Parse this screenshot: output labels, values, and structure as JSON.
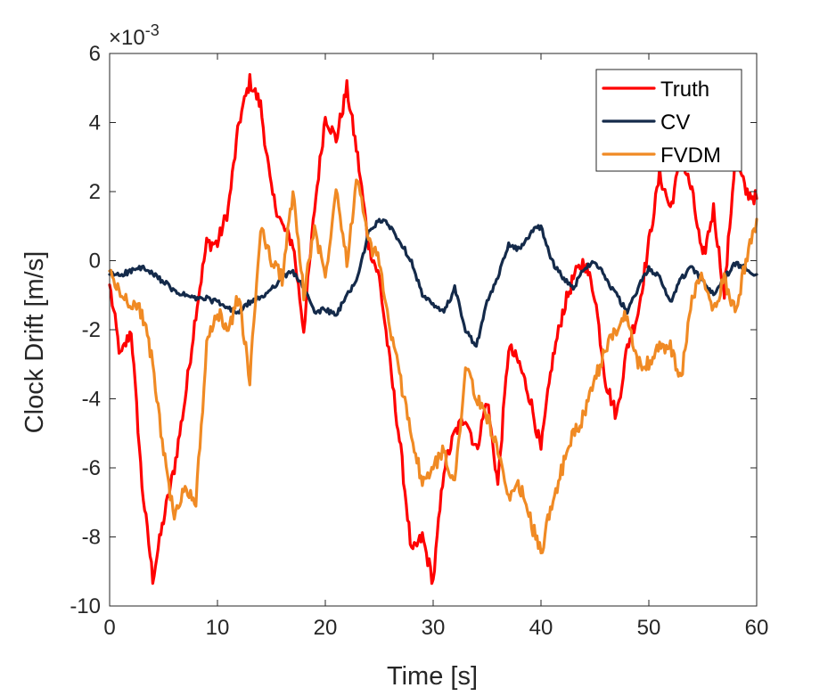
{
  "chart_data": {
    "type": "line",
    "xlabel": "Time [s]",
    "ylabel": "Clock Drift [m/s]",
    "y_exponent": {
      "base": "×10",
      "power": "-3"
    },
    "xlim": [
      0,
      60
    ],
    "ylim": [
      -10,
      6
    ],
    "xticks": [
      0,
      10,
      20,
      30,
      40,
      50,
      60
    ],
    "xtick_labels": [
      "0",
      "10",
      "20",
      "30",
      "40",
      "50",
      "60"
    ],
    "yticks": [
      -10,
      -8,
      -6,
      -4,
      -2,
      0,
      2,
      4,
      6
    ],
    "ytick_labels": [
      "-10",
      "-8",
      "-6",
      "-4",
      "-2",
      "0",
      "2",
      "4",
      "6"
    ],
    "grid": false,
    "legend_position": "top-right",
    "series": [
      {
        "name": "Truth",
        "color": "#ff0000",
        "x": [
          0,
          1,
          2,
          3,
          4,
          5,
          6,
          7,
          8,
          9,
          10,
          11,
          12,
          13,
          14,
          15,
          16,
          17,
          18,
          19,
          20,
          21,
          22,
          23,
          24,
          25,
          26,
          27,
          28,
          29,
          30,
          31,
          32,
          33,
          34,
          35,
          36,
          37,
          38,
          39,
          40,
          41,
          42,
          43,
          44,
          45,
          46,
          47,
          48,
          49,
          50,
          51,
          52,
          53,
          54,
          55,
          56,
          57,
          58,
          59,
          60
        ],
        "y": [
          -0.7,
          -2.8,
          -2.0,
          -6.5,
          -9.2,
          -7.5,
          -6.0,
          -4.0,
          -1.5,
          0.5,
          0.5,
          1.5,
          4.0,
          5.2,
          4.5,
          2.0,
          1.0,
          0.5,
          -2.0,
          1.5,
          4.2,
          3.5,
          5.0,
          3.0,
          0.5,
          -0.5,
          -3.0,
          -5.5,
          -8.5,
          -8.0,
          -9.3,
          -6.0,
          -5.0,
          -4.5,
          -5.5,
          -4.0,
          -6.5,
          -2.5,
          -3.0,
          -4.0,
          -5.5,
          -3.0,
          -1.5,
          -0.5,
          0.0,
          -1.0,
          -3.5,
          -4.5,
          -2.5,
          -1.5,
          0.5,
          2.5,
          1.5,
          3.0,
          2.0,
          0.0,
          1.5,
          -1.0,
          3.0,
          2.0,
          1.8
        ]
      },
      {
        "name": "CV",
        "color": "#142a4a",
        "x": [
          0,
          1,
          2,
          3,
          4,
          5,
          6,
          7,
          8,
          9,
          10,
          11,
          12,
          13,
          14,
          15,
          16,
          17,
          18,
          19,
          20,
          21,
          22,
          23,
          24,
          25,
          26,
          27,
          28,
          29,
          30,
          31,
          32,
          33,
          34,
          35,
          36,
          37,
          38,
          39,
          40,
          41,
          42,
          43,
          44,
          45,
          46,
          47,
          48,
          49,
          50,
          51,
          52,
          53,
          54,
          55,
          56,
          57,
          58,
          59,
          60
        ],
        "y": [
          -0.4,
          -0.4,
          -0.3,
          -0.2,
          -0.4,
          -0.6,
          -0.9,
          -1.0,
          -1.1,
          -1.1,
          -1.2,
          -1.4,
          -1.5,
          -1.2,
          -1.1,
          -0.8,
          -0.5,
          -0.3,
          -0.8,
          -1.5,
          -1.4,
          -1.6,
          -1.0,
          -0.5,
          0.8,
          1.2,
          1.0,
          0.5,
          0.0,
          -1.0,
          -1.3,
          -1.5,
          -0.8,
          -2.0,
          -2.5,
          -1.2,
          -0.5,
          0.5,
          0.3,
          0.8,
          1.0,
          0.0,
          -0.5,
          -0.8,
          -0.2,
          0.0,
          -0.5,
          -1.0,
          -1.5,
          -0.8,
          -0.2,
          -0.5,
          -1.2,
          -0.5,
          -0.2,
          -0.6,
          -1.0,
          -0.5,
          -0.1,
          -0.2,
          -0.4
        ]
      },
      {
        "name": "FVDM",
        "color": "#f08a24",
        "x": [
          0,
          1,
          2,
          3,
          4,
          5,
          6,
          7,
          8,
          9,
          10,
          11,
          12,
          13,
          14,
          15,
          16,
          17,
          18,
          19,
          20,
          21,
          22,
          23,
          24,
          25,
          26,
          27,
          28,
          29,
          30,
          31,
          32,
          33,
          34,
          35,
          36,
          37,
          38,
          39,
          40,
          41,
          42,
          43,
          44,
          45,
          46,
          47,
          48,
          49,
          50,
          51,
          52,
          53,
          54,
          55,
          56,
          57,
          58,
          59,
          60
        ],
        "y": [
          -0.3,
          -1.0,
          -1.2,
          -1.5,
          -3.0,
          -5.5,
          -7.5,
          -6.5,
          -7.0,
          -2.5,
          -1.5,
          -2.0,
          -1.0,
          -3.5,
          1.0,
          0.0,
          -0.5,
          2.0,
          -1.0,
          1.0,
          -0.5,
          2.2,
          0.0,
          2.5,
          0.5,
          0.0,
          -2.0,
          -3.5,
          -5.0,
          -6.5,
          -6.0,
          -5.5,
          -6.5,
          -3.0,
          -4.0,
          -4.5,
          -5.5,
          -7.0,
          -6.5,
          -7.5,
          -8.5,
          -7.0,
          -6.0,
          -5.0,
          -4.5,
          -3.5,
          -2.5,
          -2.0,
          -1.5,
          -3.0,
          -3.0,
          -2.5,
          -2.5,
          -3.5,
          -1.0,
          -0.5,
          -1.5,
          -0.5,
          -1.5,
          0.0,
          1.2
        ]
      }
    ]
  }
}
